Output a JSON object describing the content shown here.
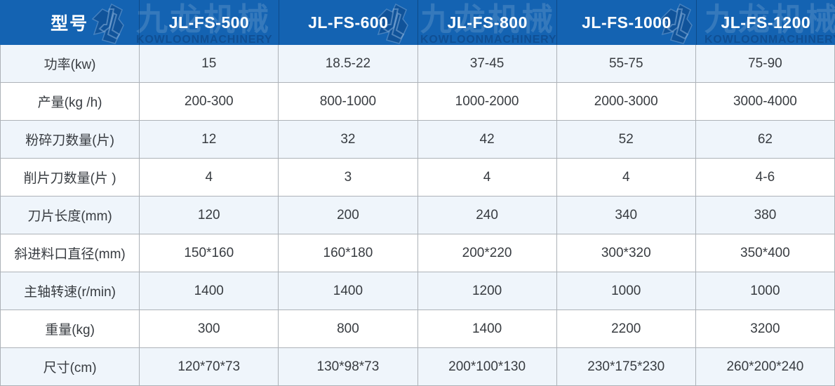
{
  "watermark": {
    "cn": "九龙机械",
    "en": "KOWLOONMACHINERY"
  },
  "table": {
    "corner_label": "型号",
    "models": [
      "JL-FS-500",
      "JL-FS-600",
      "JL-FS-800",
      "JL-FS-1000",
      "JL-FS-1200"
    ],
    "rows": [
      {
        "label": "功率(kw)",
        "values": [
          "15",
          "18.5-22",
          "37-45",
          "55-75",
          "75-90"
        ]
      },
      {
        "label": "产量(kg /h)",
        "values": [
          "200-300",
          "800-1000",
          "1000-2000",
          "2000-3000",
          "3000-4000"
        ]
      },
      {
        "label": "粉碎刀数量(片)",
        "values": [
          "12",
          "32",
          "42",
          "52",
          "62"
        ]
      },
      {
        "label": "削片刀数量(片 )",
        "values": [
          "4",
          "3",
          "4",
          "4",
          "4-6"
        ]
      },
      {
        "label": "刀片长度(mm)",
        "values": [
          "120",
          "200",
          "240",
          "340",
          "380"
        ]
      },
      {
        "label": "斜进料口直径(mm)",
        "values": [
          "150*160",
          "160*180",
          "200*220",
          "300*320",
          "350*400"
        ]
      },
      {
        "label": "主轴转速(r/min)",
        "values": [
          "1400",
          "1400",
          "1200",
          "1000",
          "1000"
        ]
      },
      {
        "label": "重量(kg)",
        "values": [
          "300",
          "800",
          "1400",
          "2200",
          "3200"
        ]
      },
      {
        "label": "尺寸(cm)",
        "values": [
          "120*70*73",
          "130*98*73",
          "200*100*130",
          "230*175*230",
          "260*200*240"
        ]
      }
    ]
  },
  "colors": {
    "header_bg": "#1463b2",
    "stripe_row_bg": "#eff5fb",
    "grid_line": "#adb2b8",
    "body_text": "#383c41",
    "header_text": "#ffffff"
  }
}
